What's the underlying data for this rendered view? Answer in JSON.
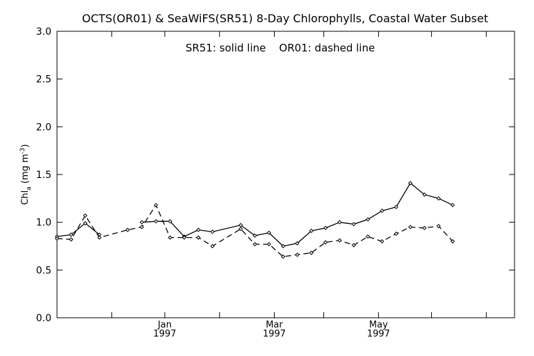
{
  "chart_data": {
    "type": "line",
    "title": "OCTS(OR01) & SeaWiFS(SR51) 8-Day Chlorophylls, Coastal Water Subset",
    "annotation": "SR51: solid line    OR01: dashed line",
    "ylabel": {
      "main": "Chl",
      "sub": "a",
      "unit": " (mg m",
      "exp": "-3",
      "close": ")"
    },
    "xlabel": "",
    "ylim": [
      0.0,
      3.0
    ],
    "y_ticks": [
      "0.0",
      "0.5",
      "1.0",
      "1.5",
      "2.0",
      "2.5",
      "3.0"
    ],
    "xlim": [
      0,
      259
    ],
    "x_ticks": [
      {
        "x": 0,
        "label": "",
        "year": ""
      },
      {
        "x": 31,
        "label": "",
        "year": ""
      },
      {
        "x": 61,
        "label": "Jan",
        "year": "1997"
      },
      {
        "x": 92,
        "label": "",
        "year": ""
      },
      {
        "x": 123,
        "label": "Mar",
        "year": "1997"
      },
      {
        "x": 151,
        "label": "",
        "year": ""
      },
      {
        "x": 182,
        "label": "May",
        "year": "1997"
      },
      {
        "x": 212,
        "label": "",
        "year": ""
      },
      {
        "x": 243,
        "label": "",
        "year": ""
      }
    ],
    "grid": false,
    "series": [
      {
        "name": "SR51",
        "dash": "solid",
        "x": [
          0,
          8,
          16,
          24,
          40,
          48,
          56,
          64,
          72,
          80,
          88,
          104,
          112,
          120,
          128,
          136,
          144,
          152,
          160,
          168,
          176,
          184,
          192,
          200,
          208,
          216,
          224,
          232,
          240,
          248,
          259
        ],
        "values": [
          0.85,
          0.87,
          0.99,
          0.87,
          null,
          1.0,
          1.01,
          1.01,
          0.85,
          0.92,
          0.9,
          0.97,
          0.86,
          0.89,
          0.75,
          0.78,
          0.91,
          0.94,
          1.0,
          0.98,
          1.03,
          1.12,
          1.16,
          1.41,
          1.29,
          1.25,
          1.18,
          null,
          null,
          null,
          null
        ]
      },
      {
        "name": "OR01",
        "dash": "dashed",
        "x": [
          0,
          8,
          16,
          24,
          40,
          48,
          56,
          64,
          72,
          80,
          88,
          104,
          112,
          120,
          128,
          136,
          144,
          152,
          160,
          168,
          176,
          184,
          192,
          200,
          208,
          216,
          224,
          232,
          240,
          248,
          259
        ],
        "values": [
          0.83,
          0.82,
          1.07,
          0.84,
          0.92,
          0.95,
          1.18,
          0.84,
          0.84,
          0.84,
          0.75,
          0.93,
          0.77,
          0.77,
          0.64,
          0.66,
          0.68,
          0.79,
          0.81,
          0.76,
          0.85,
          0.8,
          0.88,
          0.95,
          0.94,
          0.96,
          0.8,
          null,
          null,
          null,
          null
        ]
      }
    ]
  }
}
